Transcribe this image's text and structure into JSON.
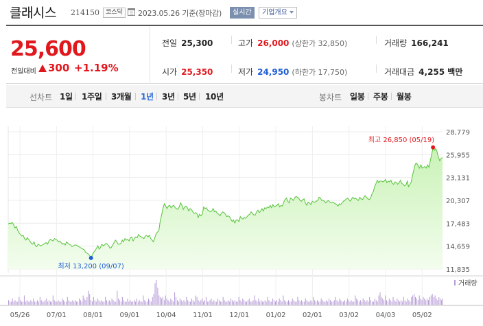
{
  "header": {
    "stock_name": "클래시스",
    "stock_code": "214150",
    "market": "코스닥",
    "date_text": "2023.05.26 기준(장마감)",
    "realtime_label": "실시간",
    "company_info_label": "기업개요"
  },
  "quote": {
    "current_price": "25,600",
    "change_label": "전일대비",
    "change_value": "300",
    "change_rate": "+1.19%",
    "cells": {
      "prev_close": {
        "label": "전일",
        "value": "25,300"
      },
      "high": {
        "label": "고가",
        "value": "26,000",
        "sub": "(상한가 32,850)"
      },
      "volume": {
        "label": "거래량",
        "value": "166,241"
      },
      "open": {
        "label": "시가",
        "value": "25,350"
      },
      "low": {
        "label": "저가",
        "value": "24,950",
        "sub": "(하한가 17,750)"
      },
      "amount": {
        "label": "거래대금",
        "value": "4,255 백만"
      }
    },
    "colors": {
      "up": "#e0181e",
      "down": "#1f5cd6"
    }
  },
  "periods": {
    "line_label": "선차트",
    "line_items": [
      "1일",
      "1주일",
      "3개월",
      "1년",
      "3년",
      "5년",
      "10년"
    ],
    "active": "1년",
    "candle_label": "봉차트",
    "candle_items": [
      "일봉",
      "주봉",
      "월봉"
    ]
  },
  "chart_data": {
    "type": "area",
    "y_ticks": [
      "28,779",
      "25,955",
      "23,131",
      "20,307",
      "17,483",
      "14,659",
      "11,835"
    ],
    "y_range": [
      11835,
      28779
    ],
    "x_ticks": [
      "05/26",
      "07/01",
      "08/01",
      "09/01",
      "10/04",
      "11/01",
      "12/01",
      "01/02",
      "02/01",
      "03/02",
      "04/03",
      "05/02"
    ],
    "high_label": "최고 26,850 (05/19)",
    "low_label": "최저 13,200 (09/07)",
    "volume_label": "거래량",
    "colors": {
      "line": "#56c23a",
      "fill_top": "#c9f2b6",
      "fill_bottom": "#f3fdee",
      "high": "#e0181e",
      "low": "#1f5cd6",
      "volume": "#b59ad6"
    },
    "prices": [
      17400,
      17500,
      17450,
      17600,
      17300,
      16900,
      17100,
      16600,
      16300,
      16100,
      15900,
      16000,
      15600,
      15400,
      15700,
      15500,
      15300,
      15000,
      14900,
      15200,
      14700,
      14600,
      14900,
      14800,
      14700,
      14800,
      14900,
      15000,
      15100,
      14900,
      15300,
      15500,
      15400,
      15300,
      15600,
      15500,
      15400,
      15200,
      15300,
      15100,
      14900,
      15000,
      14800,
      15200,
      15000,
      14900,
      14800,
      14600,
      14700,
      14800,
      14800,
      14700,
      14600,
      14500,
      14400,
      14300,
      14200,
      13900,
      13800,
      13700,
      13500,
      13200,
      13600,
      13900,
      14100,
      14400,
      14700,
      14300,
      14500,
      14900,
      14700,
      14800,
      15000,
      14900,
      14700,
      14400,
      14500,
      14800,
      15100,
      15400,
      15200,
      14900,
      14900,
      15000,
      15400,
      15200,
      15600,
      15400,
      15500,
      15300,
      15700,
      15800,
      15300,
      15600,
      15800,
      15700,
      16100,
      15900,
      15800,
      15700,
      15600,
      15900,
      16000,
      15800,
      16000,
      15600,
      15400,
      15200,
      15700,
      16200,
      16400,
      16600,
      17800,
      18500,
      19300,
      19900,
      19600,
      19300,
      19600,
      19700,
      19400,
      19600,
      19700,
      19400,
      19300,
      19200,
      19500,
      20000,
      19700,
      19200,
      19500,
      19600,
      19400,
      19000,
      19300,
      19200,
      18900,
      18700,
      18800,
      18700,
      18200,
      18600,
      18400,
      18600,
      19500,
      19300,
      19400,
      19100,
      19000,
      18900,
      19000,
      19300,
      18900,
      19000,
      18700,
      18600,
      18400,
      18700,
      18900,
      18800,
      18600,
      18300,
      18400,
      18300,
      18000,
      17700,
      17900,
      17500,
      17900,
      17900,
      17700,
      18300,
      18100,
      18000,
      18200,
      18100,
      18300,
      18500,
      18600,
      18900,
      18700,
      18500,
      18500,
      18900,
      19100,
      18800,
      19000,
      19300,
      19000,
      19400,
      19300,
      19500,
      19400,
      19700,
      19400,
      19800,
      19500,
      19600,
      19700,
      19900,
      19500,
      19700,
      19600,
      20100,
      20400,
      20600,
      20200,
      20000,
      20600,
      20500,
      20300,
      20600,
      20800,
      20700,
      20600,
      20300,
      20200,
      20400,
      20500,
      20000,
      19700,
      20100,
      20000,
      19800,
      20200,
      20100,
      20100,
      20200,
      20300,
      20700,
      20600,
      20300,
      20300,
      20200,
      20000,
      20200,
      20300,
      20100,
      20000,
      20100,
      20000,
      19900,
      19800,
      19600,
      19900,
      19800,
      20000,
      20200,
      20300,
      20500,
      20600,
      20400,
      20200,
      20500,
      20700,
      20500,
      20600,
      20400,
      20300,
      20700,
      20500,
      20400,
      20700,
      20900,
      20700,
      20500,
      20400,
      20600,
      21100,
      21400,
      22000,
      22400,
      22800,
      22500,
      22700,
      22700,
      22600,
      22700,
      22900,
      22500,
      22700,
      22600,
      22800,
      22400,
      22300,
      22600,
      22500,
      22300,
      22500,
      22800,
      22400,
      22300,
      22100,
      22200,
      22700,
      22000,
      22300,
      22600,
      23500,
      24200,
      24800,
      24900,
      24600,
      24300,
      24700,
      24300,
      24400,
      24500,
      24300,
      24700,
      24400,
      25200,
      26000,
      26850,
      26500,
      26700,
      26300,
      25600,
      25200,
      25500,
      25600
    ],
    "volumes": [
      3,
      2,
      2,
      4,
      2,
      3,
      2,
      2,
      5,
      3,
      2,
      2,
      6,
      2,
      3,
      2,
      2,
      3,
      2,
      4,
      2,
      2,
      3,
      2,
      5,
      3,
      2,
      2,
      3,
      4,
      2,
      3,
      2,
      2,
      6,
      3,
      2,
      2,
      3,
      2,
      2,
      4,
      3,
      2,
      2,
      5,
      3,
      2,
      2,
      3,
      2,
      3,
      2,
      2,
      4,
      3,
      2,
      6,
      4,
      3,
      5,
      9,
      7,
      3,
      2,
      5,
      3,
      2,
      4,
      3,
      2,
      3,
      2,
      2,
      5,
      3,
      2,
      3,
      2,
      4,
      3,
      2,
      2,
      9,
      4,
      3,
      2,
      5,
      3,
      2,
      2,
      4,
      2,
      3,
      2,
      2,
      3,
      2,
      4,
      2,
      3,
      2,
      2,
      6,
      3,
      2,
      2,
      4,
      3,
      2,
      5,
      7,
      14,
      16,
      11,
      6,
      5,
      4,
      5,
      3,
      6,
      4,
      3,
      2,
      4,
      3,
      2,
      8,
      5,
      3,
      2,
      4,
      3,
      2,
      3,
      2,
      5,
      3,
      2,
      2,
      4,
      3,
      2,
      6,
      5,
      3,
      2,
      3,
      4,
      2,
      3,
      5,
      2,
      2,
      3,
      4,
      2,
      3,
      2,
      2,
      4,
      3,
      2,
      2,
      5,
      3,
      2,
      2,
      3,
      2,
      4,
      3,
      2,
      3,
      2,
      2,
      5,
      3,
      2,
      4,
      3,
      2,
      2,
      3,
      4,
      2,
      2,
      3,
      6,
      3,
      2,
      4,
      2,
      3,
      2,
      2,
      3,
      2,
      5,
      3,
      2,
      2,
      4,
      3,
      2,
      3,
      2,
      4,
      3,
      2,
      6,
      3,
      2,
      2,
      3,
      2,
      2,
      4,
      3,
      2,
      2,
      5,
      3,
      2,
      3,
      2,
      2,
      4,
      3,
      2,
      2,
      3,
      2,
      5,
      3,
      2,
      3,
      2,
      2,
      4,
      3,
      2,
      2,
      3,
      2,
      4,
      3,
      2,
      2,
      3,
      5,
      3,
      2,
      4,
      3,
      2,
      2,
      3,
      2,
      4,
      3,
      2,
      3,
      2,
      2,
      6,
      4,
      3,
      2,
      3,
      2,
      4,
      3,
      2,
      3,
      2,
      5,
      3,
      2,
      2,
      4,
      3,
      2,
      6,
      8,
      5,
      4,
      3,
      6,
      3,
      2,
      4,
      3,
      2,
      5,
      3,
      2,
      4,
      3,
      2,
      3,
      2,
      5,
      3,
      2,
      4,
      3,
      2,
      5,
      6,
      7,
      5,
      4,
      3,
      6,
      4,
      3,
      5,
      4,
      3,
      4,
      3,
      5,
      6,
      7,
      5,
      6,
      4,
      3,
      5,
      4,
      3,
      4
    ]
  }
}
